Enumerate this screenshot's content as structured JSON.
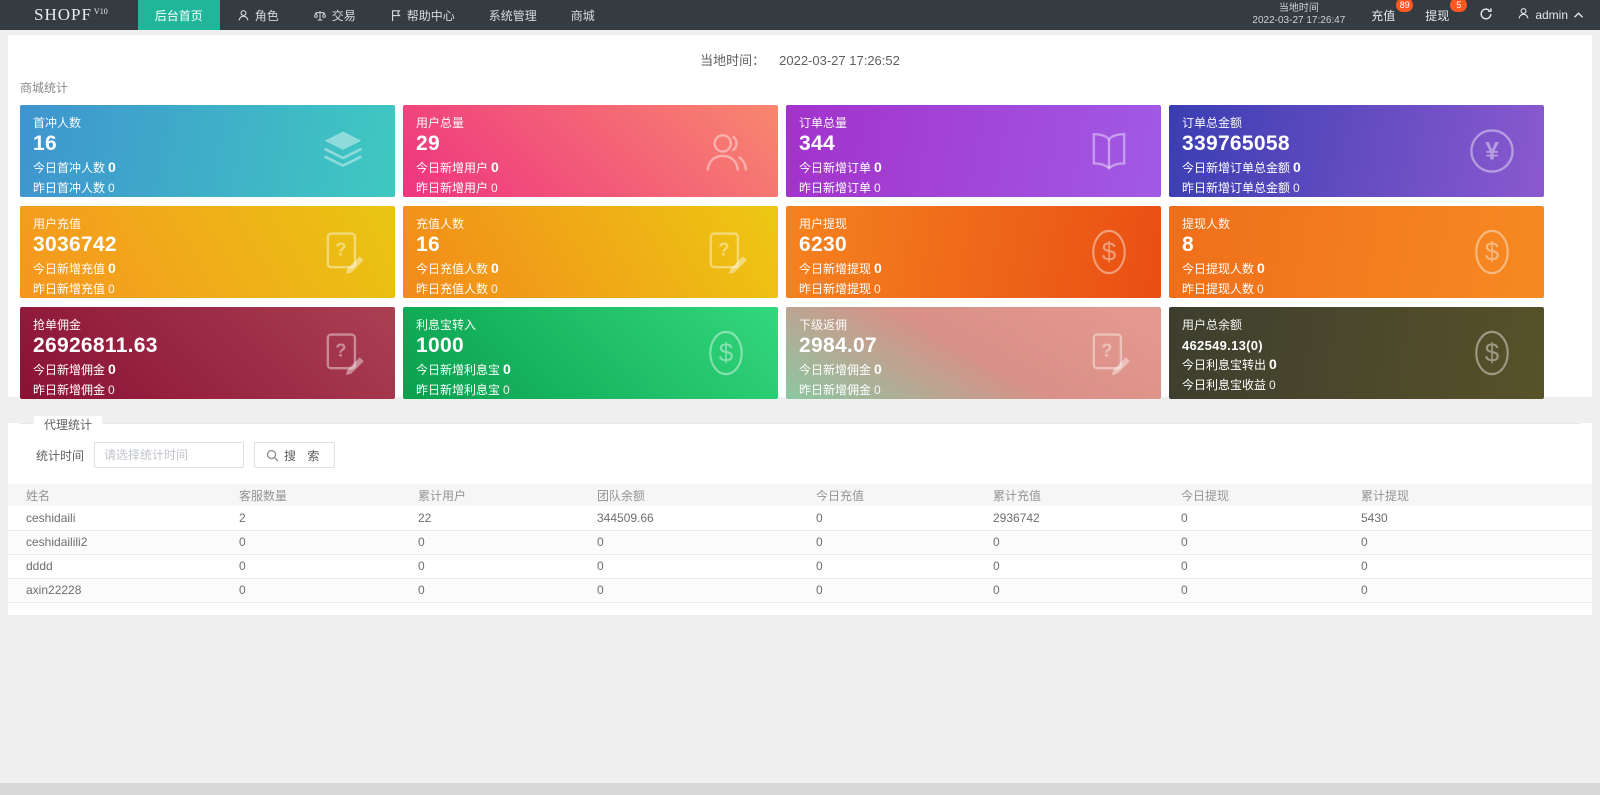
{
  "navbar": {
    "logo": "SHOPF",
    "logo_sup": "V10",
    "items": [
      {
        "label": "后台首页"
      },
      {
        "label": "角色"
      },
      {
        "label": "交易"
      },
      {
        "label": "帮助中心"
      },
      {
        "label": "系统管理"
      },
      {
        "label": "商城"
      }
    ],
    "local_time_label": "当地时间",
    "local_time_value": "2022-03-27 17:26:47",
    "recharge_label": "充值",
    "recharge_badge": "89",
    "withdraw_label": "提现",
    "withdraw_badge": "5",
    "username": "admin"
  },
  "header": {
    "local_time_label": "当地时间：",
    "local_time_value": "2022-03-27 17:26:52",
    "section_title": "商城统计"
  },
  "stats_cards": [
    {
      "title": "首冲人数",
      "value": "16",
      "line1_label": "今日首冲人数",
      "line1_value": "0",
      "line2_label": "昨日首冲人数",
      "line2_value": "0",
      "icon": "layers",
      "gradient": [
        "#3f94cf",
        "#3fc9c1"
      ]
    },
    {
      "title": "用户总量",
      "value": "29",
      "line1_label": "今日新增用户",
      "line1_value": "0",
      "line2_label": "昨日新增用户",
      "line2_value": "0",
      "icon": "users",
      "gradient": [
        "#ee3480",
        "#f8876f"
      ]
    },
    {
      "title": "订单总量",
      "value": "344",
      "line1_label": "今日新增订单",
      "line1_value": "0",
      "line2_label": "昨日新增订单",
      "line2_value": "0",
      "icon": "book",
      "gradient": [
        "#a232cb",
        "#a15ae4"
      ]
    },
    {
      "title": "订单总金额",
      "value": "339765058",
      "line1_label": "今日新增订单总金额",
      "line1_value": "0",
      "line2_label": "昨日新增订单总金额",
      "line2_value": "0",
      "icon": "yen",
      "gradient": [
        "#3a3eb2",
        "#8b59cf"
      ]
    },
    {
      "title": "用户充值",
      "value": "3036742",
      "line1_label": "今日新增充值",
      "line1_value": "0",
      "line2_label": "昨日新增充值",
      "line2_value": "0",
      "icon": "doc",
      "gradient": [
        "#f6961f",
        "#e9c513"
      ]
    },
    {
      "title": "充值人数",
      "value": "16",
      "line1_label": "今日充值人数",
      "line1_value": "0",
      "line2_label": "昨日充值人数",
      "line2_value": "0",
      "icon": "doc",
      "gradient": [
        "#f28a1a",
        "#edc813"
      ]
    },
    {
      "title": "用户提现",
      "value": "6230",
      "line1_label": "今日新增提现",
      "line1_value": "0",
      "line2_label": "昨日新增提现",
      "line2_value": "0",
      "icon": "dollar",
      "gradient": [
        "#f5831f",
        "#e94e14"
      ]
    },
    {
      "title": "提现人数",
      "value": "8",
      "line1_label": "今日提现人数",
      "line1_value": "0",
      "line2_label": "昨日提现人数",
      "line2_value": "0",
      "icon": "dollar",
      "gradient": [
        "#ef6f1a",
        "#f68a22"
      ]
    },
    {
      "title": "抢单佣金",
      "value": "26926811.63",
      "line1_label": "今日新增佣金",
      "line1_value": "0",
      "line2_label": "昨日新增佣金",
      "line2_value": "0",
      "icon": "doc",
      "gradient": [
        "#8a1133",
        "#aa4054"
      ]
    },
    {
      "title": "利息宝转入",
      "value": "1000",
      "line1_label": "今日新增利息宝",
      "line1_value": "0",
      "line2_label": "昨日新增利息宝",
      "line2_value": "0",
      "icon": "dollar",
      "gradient": [
        "#099f4e",
        "#33d87d"
      ]
    },
    {
      "title": "下级返佣",
      "value": "2984.07",
      "line1_label": "今日新增佣金",
      "line1_value": "0",
      "line2_label": "昨日新增佣金",
      "line2_value": "0",
      "icon": "doc",
      "gradient": [
        "#8bc7a1",
        "#d99088",
        "#e59a8f"
      ]
    },
    {
      "title": "用户总余额",
      "value": "462549.13(0)",
      "line1_label": "今日利息宝转出",
      "line1_value": "0",
      "line2_label": "今日利息宝收益",
      "line2_value": "0",
      "icon": "dollar",
      "gradient": [
        "#3d3e2e",
        "#585229"
      ]
    }
  ],
  "agent_panel": {
    "title": "代理统计",
    "filter_label": "统计时间",
    "filter_placeholder": "请选择统计时间",
    "search_label": "搜 索"
  },
  "agent_table": {
    "headers": [
      "姓名",
      "客服数量",
      "累计用户",
      "团队余额",
      "今日充值",
      "累计充值",
      "今日提现",
      "累计提现"
    ],
    "rows": [
      [
        "ceshidaili",
        "2",
        "22",
        "344509.66",
        "0",
        "2936742",
        "0",
        "5430"
      ],
      [
        "ceshidailili2",
        "0",
        "0",
        "0",
        "0",
        "0",
        "0",
        "0"
      ],
      [
        "dddd",
        "0",
        "0",
        "0",
        "0",
        "0",
        "0",
        "0"
      ],
      [
        "axin22228",
        "0",
        "0",
        "0",
        "0",
        "0",
        "0",
        "0"
      ]
    ]
  },
  "colors": {
    "navbar_bg": "#353c41",
    "active_menu": "#1fb69a",
    "badge": "#ff5722",
    "page_bg": "#efefef"
  }
}
